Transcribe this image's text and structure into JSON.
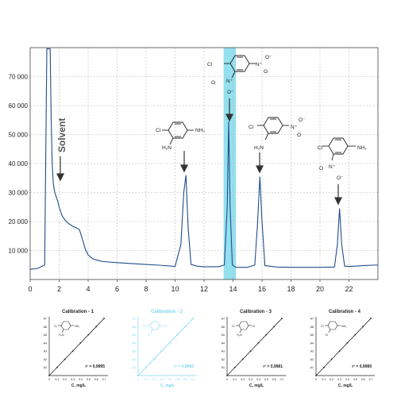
{
  "colors": {
    "trace": "#1f4e8c",
    "highlight": "#6fd6ea",
    "grid": "#b8b8b8",
    "axis": "#333333",
    "annotation": "#444444",
    "cal_active": "#222222",
    "cal_faded": "#7fd8ee"
  },
  "chart_data": [
    {
      "type": "line",
      "title": "",
      "xlabel": "",
      "ylabel": "",
      "xlim": [
        0,
        24
      ],
      "ylim": [
        0,
        80000
      ],
      "grid": true,
      "x_ticks": [
        0,
        2,
        4,
        6,
        8,
        10,
        12,
        14,
        16,
        18,
        20,
        22
      ],
      "y_ticks": [
        10000,
        20000,
        30000,
        40000,
        50000,
        60000,
        70000
      ],
      "x_tick_labels": [
        "0",
        "2",
        "4",
        "6",
        "8",
        "10",
        "12",
        "14",
        "16",
        "18",
        "20",
        "22"
      ],
      "y_tick_labels": [
        "10 000",
        "20 000",
        "30 000",
        "40 000",
        "50 000",
        "60 000",
        "70 000"
      ],
      "highlight_band": [
        13.35,
        14.2
      ],
      "series": [
        {
          "x": [
            0,
            0.5,
            1.0,
            1.15,
            1.25,
            1.3,
            1.38,
            1.45,
            1.52,
            1.6,
            1.7,
            1.8,
            1.9,
            2.0,
            2.2,
            2.4,
            2.6,
            2.8,
            3.0,
            3.2,
            3.4,
            3.6,
            3.8,
            4.0,
            4.3,
            4.6,
            5.0,
            6.0,
            7.0,
            8.0,
            9.0,
            10.0,
            10.4,
            10.6,
            10.75,
            10.9,
            11.1,
            11.5,
            12.0,
            13.0,
            13.4,
            13.6,
            13.7,
            13.8,
            13.95,
            14.2,
            15.0,
            15.5,
            15.7,
            15.85,
            16.0,
            16.2,
            17.0,
            18.0,
            19.0,
            20.0,
            21.0,
            21.2,
            21.35,
            21.5,
            21.7,
            22.0,
            22.5,
            23.0,
            24.0
          ],
          "y": [
            3500,
            3800,
            5000,
            80000,
            80000,
            80000,
            80000,
            55000,
            40000,
            33000,
            30000,
            28500,
            27000,
            25000,
            22000,
            20500,
            19500,
            18800,
            18200,
            17800,
            17200,
            14000,
            10500,
            8500,
            7200,
            6700,
            6200,
            5800,
            5500,
            5200,
            4900,
            4500,
            12000,
            30000,
            36000,
            18000,
            5200,
            4600,
            4400,
            4400,
            5000,
            25000,
            54500,
            25000,
            5000,
            4200,
            4200,
            5000,
            20000,
            35500,
            20000,
            4800,
            4300,
            4200,
            4200,
            4200,
            4300,
            12000,
            24500,
            12000,
            4600,
            4500,
            4600,
            4800,
            5000
          ]
        }
      ],
      "annotations": [
        "Solvent"
      ],
      "structures": [
        {
          "labels": [
            "Cl",
            "NH₂",
            "H₂N"
          ]
        },
        {
          "labels": [
            "Cl",
            "N⁺",
            "O⁻",
            "N⁺",
            "O⁻",
            "O"
          ]
        },
        {
          "labels": [
            "Cl",
            "N⁺",
            "O⁻",
            "O",
            "H₂N"
          ]
        },
        {
          "labels": [
            "Cl",
            "NH₂",
            "N⁺",
            "O⁻",
            "O"
          ]
        }
      ]
    },
    {
      "type": "line",
      "title": "Calibration - 1",
      "xlabel": "C, mg/L",
      "r2": "r² = 0,9995",
      "y_tick_labels": [
        "A1",
        "A2",
        "A3",
        "A4",
        "A5",
        "A6",
        "A7"
      ],
      "x_tick_labels": [
        "0",
        "0.1",
        "0.2",
        "0.3",
        "0.4",
        "0.5",
        "0.6",
        "0.7"
      ],
      "structure_labels": [
        "Cl",
        "NH₂",
        "H₂N"
      ],
      "series": [
        {
          "x": [
            0,
            0.1,
            0.2,
            0.3,
            0.4,
            0.5,
            0.6,
            0.7
          ],
          "y": [
            0,
            1,
            2,
            3,
            4,
            5,
            6,
            7
          ]
        }
      ]
    },
    {
      "type": "line",
      "title": "Calibration - 2",
      "xlabel": "C, mg/L",
      "r2": "r² = 0,9992",
      "y_tick_labels": [
        "A1",
        "A2",
        "A3",
        "A4",
        "A5",
        "A6",
        "A7"
      ],
      "x_tick_labels": [
        "0",
        "0.1",
        "0.2",
        "0.3",
        "0.4",
        "0.5",
        "0.6",
        "0.7"
      ],
      "structure_labels": [
        "Cl",
        "N⁺",
        "O⁻"
      ],
      "series": [
        {
          "x": [
            0,
            0.1,
            0.2,
            0.3,
            0.4,
            0.5,
            0.6,
            0.7
          ],
          "y": [
            0,
            1,
            2,
            3,
            4,
            5,
            6,
            7
          ]
        }
      ]
    },
    {
      "type": "line",
      "title": "Calibration - 3",
      "xlabel": "C, mg/L",
      "r2": "r² = 0,9981",
      "y_tick_labels": [
        "A1",
        "A2",
        "A3",
        "A4",
        "A5",
        "A6",
        "A7"
      ],
      "x_tick_labels": [
        "0",
        "0.1",
        "0.2",
        "0.3",
        "0.4",
        "0.5",
        "0.6",
        "0.7"
      ],
      "structure_labels": [
        "Cl",
        "N",
        "H₂N"
      ],
      "series": [
        {
          "x": [
            0,
            0.1,
            0.2,
            0.3,
            0.4,
            0.5,
            0.6,
            0.7
          ],
          "y": [
            0,
            1,
            2,
            3,
            4,
            5,
            6,
            7
          ]
        }
      ]
    },
    {
      "type": "line",
      "title": "Calibration - 4",
      "xlabel": "C, mg/L",
      "r2": "r² = 0,9989",
      "y_tick_labels": [
        "A1",
        "A2",
        "A3",
        "A4",
        "A5",
        "A6",
        "A7"
      ],
      "x_tick_labels": [
        "0",
        "0.1",
        "0.2",
        "0.3",
        "0.4",
        "0.5",
        "0.6",
        "0.7"
      ],
      "structure_labels": [
        "Cl",
        "NH₂",
        "N"
      ],
      "series": [
        {
          "x": [
            0,
            0.1,
            0.2,
            0.3,
            0.4,
            0.5,
            0.6,
            0.7
          ],
          "y": [
            0,
            1,
            2,
            3,
            4,
            5,
            6,
            7
          ]
        }
      ]
    }
  ]
}
